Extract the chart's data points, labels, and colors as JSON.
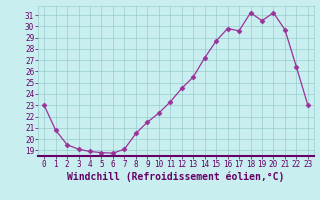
{
  "x": [
    0,
    1,
    2,
    3,
    4,
    5,
    6,
    7,
    8,
    9,
    10,
    11,
    12,
    13,
    14,
    15,
    16,
    17,
    18,
    19,
    20,
    21,
    22,
    23
  ],
  "y": [
    23.0,
    20.8,
    19.5,
    19.1,
    18.9,
    18.8,
    18.75,
    19.1,
    20.5,
    21.5,
    22.3,
    23.3,
    24.5,
    25.5,
    27.2,
    28.7,
    29.8,
    29.6,
    31.2,
    30.5,
    31.2,
    29.7,
    26.4,
    23.0
  ],
  "line_color": "#993399",
  "marker": "D",
  "marker_size": 2.5,
  "bg_color": "#c8eef0",
  "grid_color": "#99cccc",
  "xlabel": "Windchill (Refroidissement éolien,°C)",
  "xlabel_fontsize": 7,
  "ylim": [
    18.5,
    31.8
  ],
  "xlim": [
    -0.5,
    23.5
  ],
  "yticks": [
    19,
    20,
    21,
    22,
    23,
    24,
    25,
    26,
    27,
    28,
    29,
    30,
    31
  ],
  "xtick_labels": [
    "0",
    "1",
    "2",
    "3",
    "4",
    "5",
    "6",
    "7",
    "8",
    "9",
    "10",
    "11",
    "12",
    "13",
    "14",
    "15",
    "16",
    "17",
    "18",
    "19",
    "20",
    "21",
    "22",
    "23"
  ],
  "spine_color": "#660066",
  "tick_fontsize": 5.5,
  "xlabel_color": "#660066"
}
